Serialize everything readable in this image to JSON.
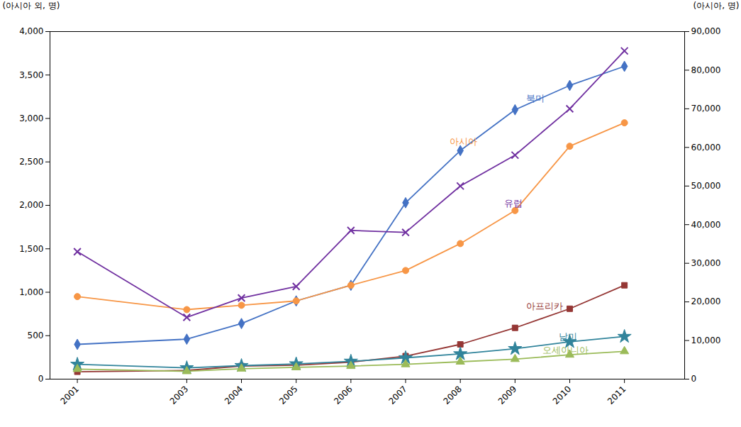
{
  "chart_data": {
    "type": "line",
    "x": [
      2001,
      2003,
      2004,
      2005,
      2006,
      2007,
      2008,
      2009,
      2010,
      2011
    ],
    "xlim": [
      2000.5,
      2012.1
    ],
    "xticks": [
      2001,
      2003,
      2004,
      2005,
      2006,
      2007,
      2008,
      2009,
      2010,
      2011
    ],
    "ylabel": "(아시아 외, 명)",
    "y2label": "(아시아, 명)",
    "ylim": [
      0,
      4000
    ],
    "yticks": [
      0,
      500,
      {
        "value": 1000,
        "label": "1,000"
      },
      {
        "value": 1500,
        "label": "1,500"
      },
      {
        "value": 2000,
        "label": "2,000"
      },
      {
        "value": 2500,
        "label": "2,500"
      },
      {
        "value": 3000,
        "label": "3,000"
      },
      {
        "value": 3500,
        "label": "3,500"
      },
      {
        "value": 4000,
        "label": "4,000"
      }
    ],
    "y2lim": [
      0,
      90000
    ],
    "y2ticks": [
      0,
      {
        "value": 10000,
        "label": "10,000"
      },
      {
        "value": 20000,
        "label": "20,000"
      },
      {
        "value": 30000,
        "label": "30,000"
      },
      {
        "value": 40000,
        "label": "40,000"
      },
      {
        "value": 50000,
        "label": "50,000"
      },
      {
        "value": 60000,
        "label": "60,000"
      },
      {
        "value": 70000,
        "label": "70,000"
      },
      {
        "value": 80000,
        "label": "80,000"
      },
      {
        "value": 90000,
        "label": "90,000"
      }
    ],
    "grid": false,
    "series": [
      {
        "name": "북미",
        "color": "#4472C4",
        "marker": "diamond",
        "values": [
          400,
          460,
          640,
          900,
          1080,
          2030,
          2630,
          3100,
          3380,
          3600
        ]
      },
      {
        "name": "유럽",
        "color": "#F79646",
        "marker": "circle",
        "values": [
          950,
          800,
          850,
          900,
          1080,
          1250,
          1560,
          1940,
          2680,
          2950
        ]
      },
      {
        "name": "아프리카",
        "color": "#953735",
        "marker": "square",
        "values": [
          85,
          100,
          150,
          160,
          195,
          265,
          400,
          590,
          810,
          1080
        ]
      },
      {
        "name": "남미",
        "color": "#31849B",
        "marker": "star",
        "values": [
          170,
          130,
          155,
          175,
          205,
          245,
          290,
          350,
          430,
          490
        ]
      },
      {
        "name": "오세아니아",
        "color": "#9BBB59",
        "marker": "triangle",
        "values": [
          115,
          90,
          120,
          135,
          150,
          170,
          200,
          230,
          280,
          320
        ]
      },
      {
        "name": "아시아",
        "color": "#7030A0",
        "marker": "x",
        "axis": "y2",
        "values": [
          33000,
          16000,
          21000,
          24000,
          38500,
          38000,
          50000,
          58000,
          70000,
          85000
        ]
      }
    ],
    "annotations": [
      {
        "text": "아시아",
        "x": 2007.8,
        "y": 2730,
        "color": "#F79646"
      },
      {
        "text": "북미",
        "x": 2009.2,
        "y": 3230,
        "color": "#4472C4"
      },
      {
        "text": "유럽",
        "x": 2008.8,
        "y": 2020,
        "color": "#7030A0"
      },
      {
        "text": "아프리카",
        "x": 2009.2,
        "y": 840,
        "color": "#953735"
      },
      {
        "text": "남미",
        "x": 2009.8,
        "y": 490,
        "color": "#31849B"
      },
      {
        "text": "오세아니아",
        "x": 2009.5,
        "y": 330,
        "color": "#9BBB59"
      }
    ]
  }
}
